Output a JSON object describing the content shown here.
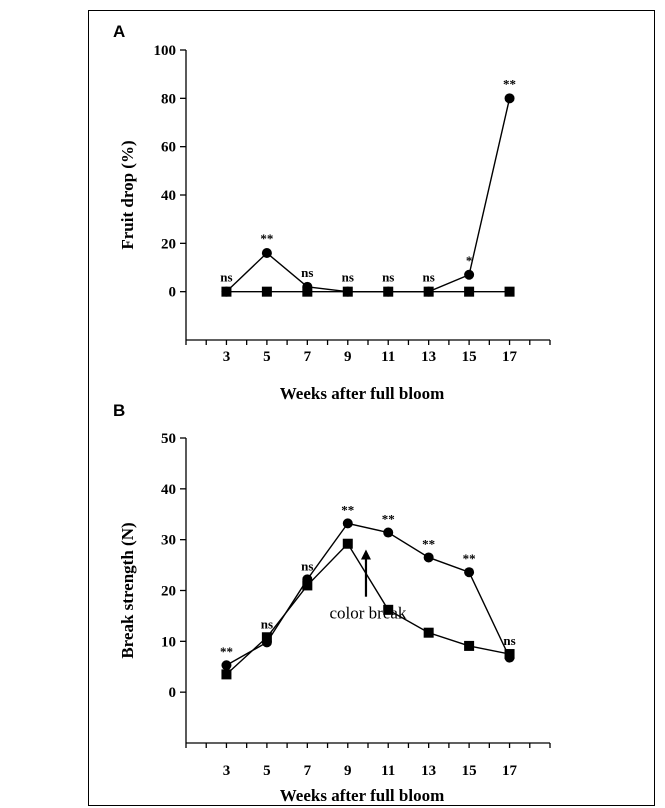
{
  "chart_data": [
    {
      "panel": "A",
      "type": "line",
      "xlabel": "Weeks after full bloom",
      "ylabel": "Fruit drop (%)",
      "x": [
        3,
        5,
        7,
        9,
        11,
        13,
        15,
        17
      ],
      "xlim": [
        1,
        19
      ],
      "ylim": [
        -20,
        100
      ],
      "yticks": [
        0,
        20,
        40,
        60,
        80,
        100
      ],
      "series": [
        {
          "marker": "circle",
          "values": [
            0,
            16,
            2,
            0,
            0,
            0,
            7,
            80
          ]
        },
        {
          "marker": "square",
          "values": [
            0,
            0,
            0,
            0,
            0,
            0,
            0,
            0
          ]
        }
      ],
      "significance": [
        "ns",
        "**",
        "ns",
        "ns",
        "ns",
        "ns",
        "*",
        "**"
      ],
      "grid": false
    },
    {
      "panel": "B",
      "type": "line",
      "xlabel": "Weeks after full bloom",
      "ylabel": "Break strength (N)",
      "x": [
        3,
        5,
        7,
        9,
        11,
        13,
        15,
        17
      ],
      "xlim": [
        1,
        19
      ],
      "ylim": [
        -10,
        50
      ],
      "yticks": [
        0,
        10,
        20,
        30,
        40,
        50
      ],
      "series": [
        {
          "marker": "circle",
          "values": [
            5.3,
            9.8,
            22.2,
            33.2,
            31.4,
            26.5,
            23.6,
            6.8
          ]
        },
        {
          "marker": "square",
          "values": [
            3.5,
            10.8,
            21.0,
            29.2,
            16.2,
            11.7,
            9.1,
            7.5
          ]
        }
      ],
      "significance": [
        "**",
        "ns",
        "ns",
        "**",
        "**",
        "**",
        "**",
        "ns"
      ],
      "annotation": {
        "text": "color break",
        "x": 9.9,
        "y": 17.6
      },
      "grid": false
    }
  ]
}
